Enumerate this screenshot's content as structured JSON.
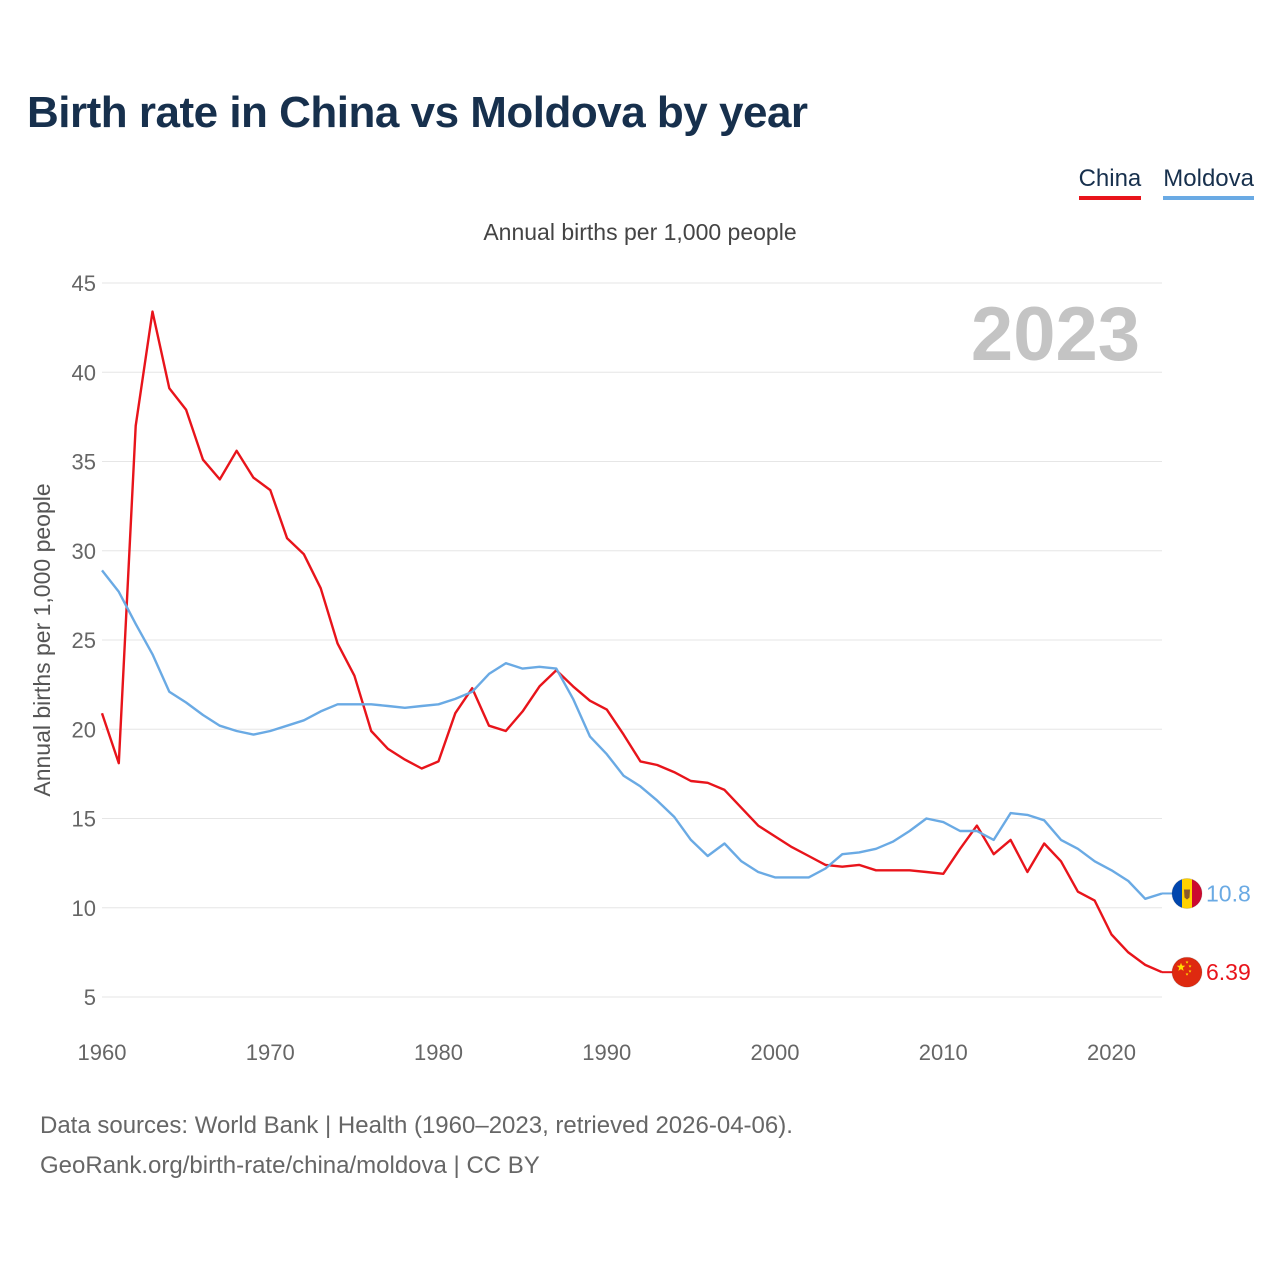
{
  "title": "Birth rate in China vs Moldova by year",
  "legend": [
    {
      "label": "China",
      "color": "#e8141b"
    },
    {
      "label": "Moldova",
      "color": "#6aaae4"
    }
  ],
  "year_label": "2023",
  "footer": {
    "line1": "Data sources: World Bank | Health (1960–2023, retrieved 2026-04-06).",
    "line2": "GeoRank.org/birth-rate/china/moldova | CC BY"
  },
  "chart_data": {
    "type": "line",
    "title": "Birth rate in China vs Moldova by year",
    "subtitle": "Annual births per 1,000 people",
    "xlabel": "",
    "ylabel": "Annual births per 1,000 people",
    "xlim": [
      1960,
      2023
    ],
    "ylim": [
      5,
      45
    ],
    "xticks": [
      "1960",
      "1970",
      "1980",
      "1990",
      "2000",
      "2010",
      "2020"
    ],
    "yticks": [
      "5",
      "10",
      "15",
      "20",
      "25",
      "30",
      "35",
      "40",
      "45"
    ],
    "grid": true,
    "legend_position": "top-right",
    "x": [
      1960,
      1961,
      1962,
      1963,
      1964,
      1965,
      1966,
      1967,
      1968,
      1969,
      1970,
      1971,
      1972,
      1973,
      1974,
      1975,
      1976,
      1977,
      1978,
      1979,
      1980,
      1981,
      1982,
      1983,
      1984,
      1985,
      1986,
      1987,
      1988,
      1989,
      1990,
      1991,
      1992,
      1993,
      1994,
      1995,
      1996,
      1997,
      1998,
      1999,
      2000,
      2001,
      2002,
      2003,
      2004,
      2005,
      2006,
      2007,
      2008,
      2009,
      2010,
      2011,
      2012,
      2013,
      2014,
      2015,
      2016,
      2017,
      2018,
      2019,
      2020,
      2021,
      2022,
      2023
    ],
    "series": [
      {
        "name": "China",
        "color": "#e8141b",
        "end_label": "6.39",
        "flag": "china-flag-icon",
        "values": [
          20.9,
          18.1,
          37.0,
          43.4,
          39.1,
          37.9,
          35.1,
          34.0,
          35.6,
          34.1,
          33.4,
          30.7,
          29.8,
          27.9,
          24.8,
          23.0,
          19.9,
          18.9,
          18.3,
          17.8,
          18.2,
          20.9,
          22.3,
          20.2,
          19.9,
          21.0,
          22.4,
          23.3,
          22.4,
          21.6,
          21.1,
          19.7,
          18.2,
          18.0,
          17.6,
          17.1,
          17.0,
          16.6,
          15.6,
          14.6,
          14.0,
          13.4,
          12.9,
          12.4,
          12.3,
          12.4,
          12.1,
          12.1,
          12.1,
          12.0,
          11.9,
          13.3,
          14.6,
          13.0,
          13.8,
          12.0,
          13.6,
          12.6,
          10.9,
          10.4,
          8.5,
          7.5,
          6.8,
          6.39
        ]
      },
      {
        "name": "Moldova",
        "color": "#6aaae4",
        "end_label": "10.8",
        "flag": "moldova-flag-icon",
        "values": [
          28.9,
          27.7,
          25.9,
          24.2,
          22.1,
          21.5,
          20.8,
          20.2,
          19.9,
          19.7,
          19.9,
          20.2,
          20.5,
          21.0,
          21.4,
          21.4,
          21.4,
          21.3,
          21.2,
          21.3,
          21.4,
          21.7,
          22.1,
          23.1,
          23.7,
          23.4,
          23.5,
          23.4,
          21.7,
          19.6,
          18.6,
          17.4,
          16.8,
          16.0,
          15.1,
          13.8,
          12.9,
          13.6,
          12.6,
          12.0,
          11.7,
          11.7,
          11.7,
          12.2,
          13.0,
          13.1,
          13.3,
          13.7,
          14.3,
          15.0,
          14.8,
          14.3,
          14.3,
          13.8,
          15.3,
          15.2,
          14.9,
          13.8,
          13.3,
          12.6,
          12.1,
          11.5,
          10.5,
          10.8
        ]
      }
    ]
  }
}
